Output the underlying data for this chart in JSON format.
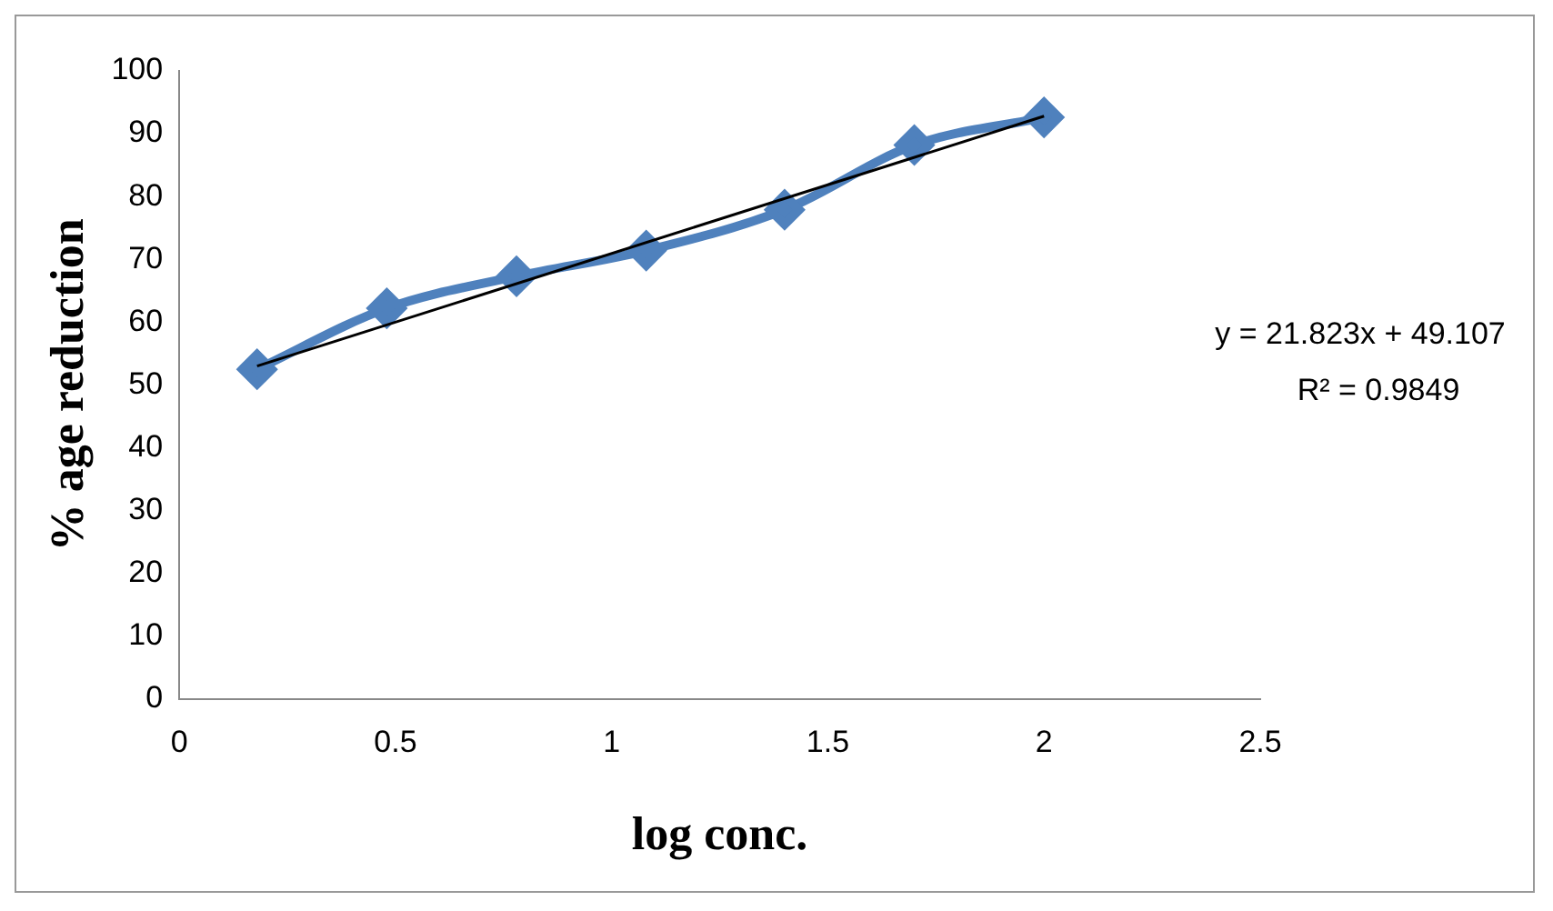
{
  "chart_data": {
    "type": "line",
    "xlabel": "log conc.",
    "ylabel": "% age reduction",
    "xlim": [
      0,
      2.5
    ],
    "xticks": [
      0,
      0.5,
      1,
      1.5,
      2,
      2.5
    ],
    "ylim": [
      0,
      100
    ],
    "yticks": [
      0,
      10,
      20,
      30,
      40,
      50,
      60,
      70,
      80,
      90,
      100
    ],
    "grid": false,
    "legend": false,
    "marker": "diamond",
    "series": [
      {
        "color": "#4f81bd",
        "x": [
          0.18,
          0.48,
          0.78,
          1.08,
          1.4,
          1.7,
          2
        ],
        "values": [
          52.5,
          62.2,
          67.3,
          71.4,
          77.9,
          88.2,
          92.6
        ]
      },
      {
        "color": "#000000",
        "marker": "none",
        "x": [
          0.18,
          2
        ],
        "values": [
          53.0,
          92.8
        ]
      }
    ],
    "annotations": [
      "y = 21.823x + 49.107",
      "R² = 0.9849"
    ]
  }
}
